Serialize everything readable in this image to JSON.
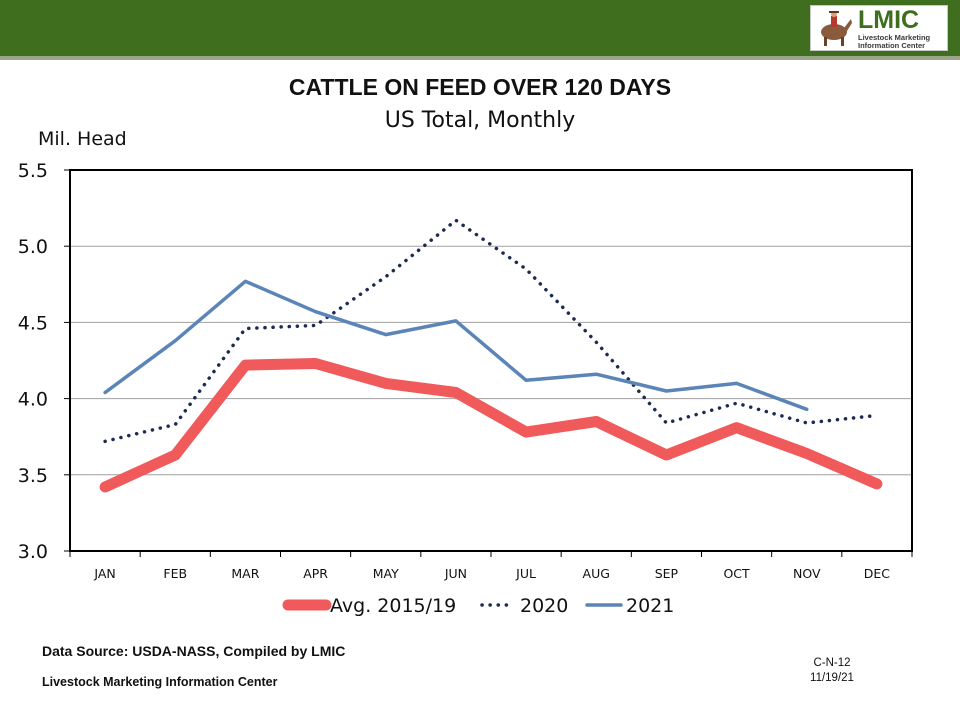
{
  "header": {
    "logo_text": "LMIC",
    "logo_subtitle": "Livestock Marketing Information Center"
  },
  "chart_data": {
    "type": "line",
    "title": "CATTLE ON FEED OVER 120 DAYS",
    "subtitle": "US Total, Monthly",
    "ylabel": "Mil. Head",
    "xlabel": "",
    "ylim": [
      3.0,
      5.5
    ],
    "yticks": [
      "3.0",
      "3.5",
      "4.0",
      "4.5",
      "5.0",
      "5.5"
    ],
    "grid": true,
    "legend_position": "bottom",
    "categories": [
      "JAN",
      "FEB",
      "MAR",
      "APR",
      "MAY",
      "JUN",
      "JUL",
      "AUG",
      "SEP",
      "OCT",
      "NOV",
      "DEC"
    ],
    "series": [
      {
        "name": "Avg. 2015/19",
        "color": "#f15a5a",
        "style": "thick",
        "values": [
          3.42,
          3.63,
          4.22,
          4.23,
          4.1,
          4.04,
          3.78,
          3.85,
          3.63,
          3.81,
          3.64,
          3.44
        ]
      },
      {
        "name": "2020",
        "color": "#1c2b52",
        "style": "dotted",
        "values": [
          3.72,
          3.83,
          4.46,
          4.48,
          4.8,
          5.17,
          4.85,
          4.37,
          3.84,
          3.97,
          3.84,
          3.89
        ]
      },
      {
        "name": "2021",
        "color": "#5b84b7",
        "style": "solid",
        "values": [
          4.04,
          4.38,
          4.77,
          4.57,
          4.42,
          4.51,
          4.12,
          4.16,
          4.05,
          4.1,
          3.93,
          null
        ]
      }
    ]
  },
  "footer": {
    "source": "Data Source:  USDA-NASS, Compiled by LMIC",
    "org": "Livestock Marketing Information Center",
    "code": "C-N-12",
    "date": "11/19/21"
  }
}
